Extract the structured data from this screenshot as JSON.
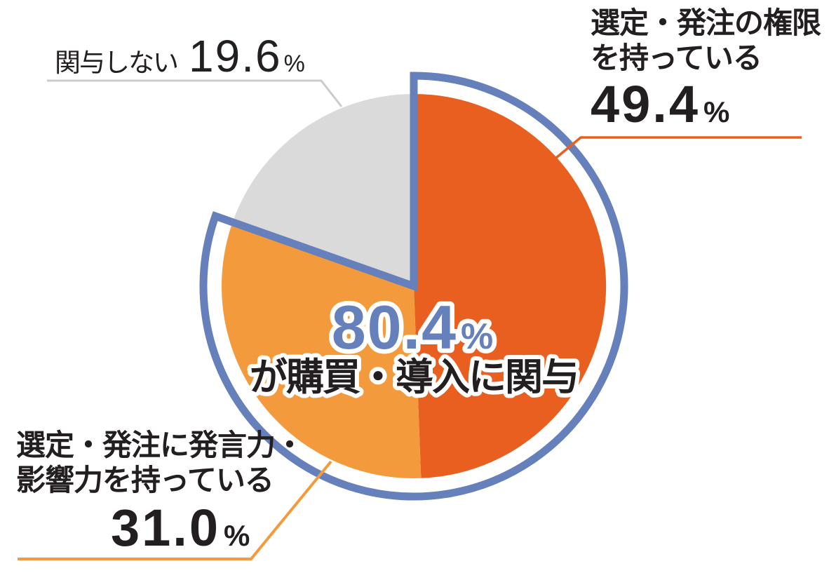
{
  "colors": {
    "background": "#FFFFFF",
    "text": "#231F20",
    "highlight_blue": "#6580BA",
    "dark_orange": "#E95F20",
    "light_orange": "#F39B3C",
    "gray": "#DADADB",
    "gray_line": "#CCCCCC"
  },
  "chart_data": {
    "type": "pie",
    "unit": "%",
    "start_angle_deg": 0,
    "direction": "clockwise",
    "slices": [
      {
        "label": "選定・発注の権限を持っている",
        "value": 49.4,
        "color": "#E95F20"
      },
      {
        "label": "選定・発注に発言力・影響力を持っている",
        "value": 31.0,
        "color": "#F39B3C"
      },
      {
        "label": "関与しない",
        "value": 19.6,
        "color": "#DADADB"
      }
    ],
    "highlight_arc": {
      "covers_slices": [
        0,
        1
      ],
      "total": 80.4,
      "color": "#6580BA"
    },
    "center_label": {
      "value": "80.4",
      "unit": "%",
      "caption": "が購買・導入に関与",
      "value_color": "#6580BA",
      "caption_color": "#231F20"
    }
  },
  "callout_labels": {
    "top_right": {
      "line1": "選定・発注の権限",
      "line2": "を持っている",
      "value": "49.4",
      "unit": "%",
      "line_color": "#E95F20"
    },
    "bottom_left": {
      "line1": "選定・発注に発言力・",
      "line2": "影響力を持っている",
      "value": "31.0",
      "unit": "%",
      "line_color": "#F39B3C"
    },
    "top_left": {
      "text": "関与しない",
      "value": "19.6",
      "unit": "%",
      "line_color": "#CCCCCC"
    }
  }
}
